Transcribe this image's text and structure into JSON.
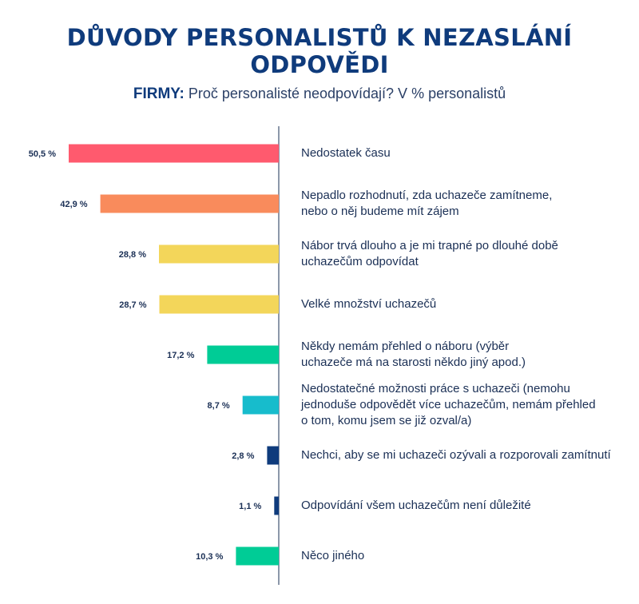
{
  "chart_data": {
    "type": "bar",
    "orientation": "horizontal",
    "title": "DŮVODY PERSONALISTŮ K NEZASLÁNÍ ODPOVĚDI",
    "subtitle_lead": "FIRMY:",
    "subtitle": "Proč personalisté neodpovídají? V % personalistů",
    "unit": "%",
    "xlim": [
      0,
      60
    ],
    "grid": false,
    "categories": [
      "Nedostatek času",
      "Nepadlo rozhodnutí, zda uchazeče zamítneme,\nnebo o něj  budeme mít zájem",
      "Nábor trvá dlouho a je mi trapné po dlouhé době\nuchazečům odpovídat",
      "Velké množství uchazečů",
      "Někdy nemám přehled o náboru (výběr\nuchazeče má na starosti někdo jiný apod.)",
      "Nedostatečné možnosti práce s uchazeči (nemohu\njednoduše odpovědět více uchazečům, nemám přehled\no tom, komu jsem se již ozval/a)",
      "Nechci, aby se mi uchazeči ozývali a rozporovali zamítnutí",
      "Odpovídání všem uchazečům není důležité",
      "Něco jiného"
    ],
    "values": [
      50.5,
      42.9,
      28.8,
      28.7,
      17.2,
      8.7,
      2.8,
      1.1,
      10.3
    ],
    "value_labels": [
      "50,5 %",
      "42,9 %",
      "28,8 %",
      "28,7 %",
      "17,2 %",
      "8,7 %",
      "2,8 %",
      "1,1 %",
      "10,3 %"
    ],
    "colors": [
      "#ff5a6e",
      "#f98b5c",
      "#f3d65a",
      "#f3d65a",
      "#00cc96",
      "#17bccc",
      "#0f3b7c",
      "#0f3b7c",
      "#00cc96"
    ]
  }
}
